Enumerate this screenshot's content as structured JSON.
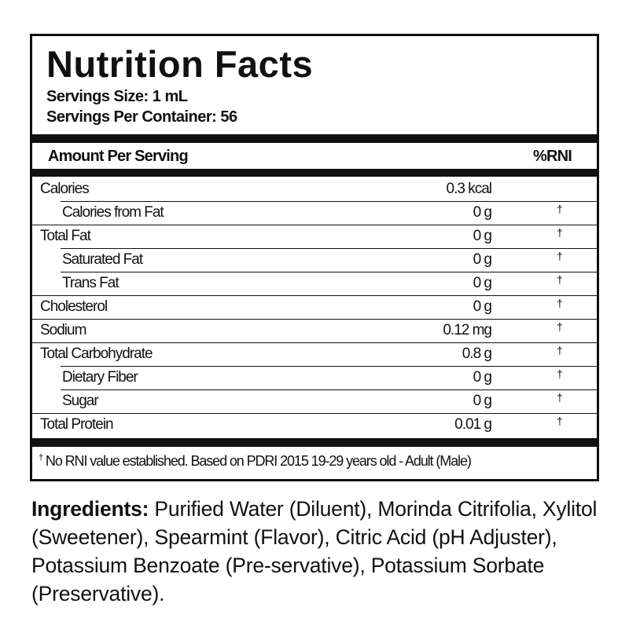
{
  "label": {
    "title": "Nutrition Facts",
    "serving_size": "Servings Size:  1 mL",
    "servings_per_container": "Servings Per Container: 56",
    "header": {
      "amount": "Amount Per Serving",
      "rni": "%RNI"
    },
    "rows": [
      {
        "name": "Calories",
        "value": "0.3 kcal",
        "rni": "",
        "sub": false
      },
      {
        "name": "Calories from Fat",
        "value": "0 g",
        "rni": "†",
        "sub": true
      },
      {
        "name": "Total Fat",
        "value": "0 g",
        "rni": "†",
        "sub": false
      },
      {
        "name": "Saturated Fat",
        "value": "0 g",
        "rni": "†",
        "sub": true
      },
      {
        "name": "Trans Fat",
        "value": "0 g",
        "rni": "†",
        "sub": true
      },
      {
        "name": "Cholesterol",
        "value": "0 g",
        "rni": "†",
        "sub": false
      },
      {
        "name": "Sodium",
        "value": "0.12 mg",
        "rni": "†",
        "sub": false
      },
      {
        "name": "Total Carbohydrate",
        "value": "0.8 g",
        "rni": "†",
        "sub": false
      },
      {
        "name": "Dietary Fiber",
        "value": "0 g",
        "rni": "†",
        "sub": true
      },
      {
        "name": "Sugar",
        "value": "0 g",
        "rni": "†",
        "sub": true
      },
      {
        "name": "Total Protein",
        "value": "0.01 g",
        "rni": "†",
        "sub": false
      }
    ],
    "footnote_mark": "†",
    "footnote": " No RNI value established. Based on PDRI 2015 19-29 years old  - Adult (Male)"
  },
  "ingredients": {
    "heading": "Ingredients:",
    "text": " Purified Water (Diluent), Morinda Citrifolia, Xylitol (Sweetener), Spearmint (Flavor), Citric Acid (pH Adjuster), Potassium Benzoate (Pre-servative), Potassium Sorbate (Preservative)."
  }
}
